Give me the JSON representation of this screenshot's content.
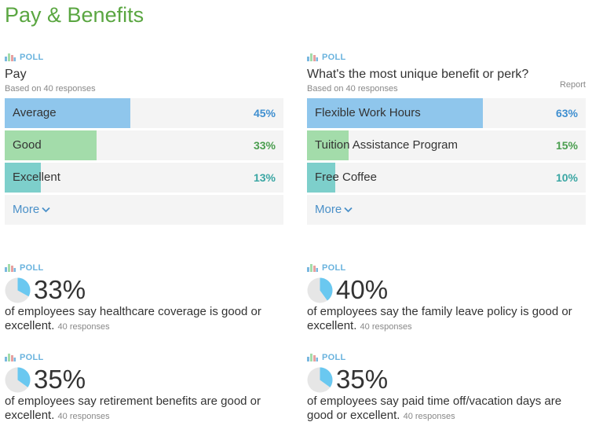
{
  "page": {
    "title": "Pay & Benefits"
  },
  "colors": {
    "blue_fill": "#8fc6ec",
    "green_fill": "#a3dcaa",
    "teal_fill": "#7dcfcb",
    "blue_text": "#3f8fd0",
    "green_text": "#4a9e4f",
    "teal_text": "#3aa6a3",
    "pie_fill": "#6ac8f0",
    "pie_bg": "#e6e6e6"
  },
  "polls": [
    {
      "tag": "POLL",
      "question": "Pay",
      "responses": "Based on 40 responses",
      "report": "",
      "more": "More",
      "options": [
        {
          "label": "Average",
          "pct_label": "45%",
          "value": 45,
          "color": "blue"
        },
        {
          "label": "Good",
          "pct_label": "33%",
          "value": 33,
          "color": "green"
        },
        {
          "label": "Excellent",
          "pct_label": "13%",
          "value": 13,
          "color": "teal"
        }
      ]
    },
    {
      "tag": "POLL",
      "question": "What's the most unique benefit or perk?",
      "responses": "Based on 40 responses",
      "report": "Report",
      "more": "More",
      "options": [
        {
          "label": "Flexible Work Hours",
          "pct_label": "63%",
          "value": 63,
          "color": "blue"
        },
        {
          "label": "Tuition Assistance Program",
          "pct_label": "15%",
          "value": 15,
          "color": "green"
        },
        {
          "label": "Free Coffee",
          "pct_label": "10%",
          "value": 10,
          "color": "teal"
        }
      ]
    }
  ],
  "stats": [
    {
      "tag": "POLL",
      "value": 33,
      "pct_label": "33%",
      "text": "of employees say healthcare coverage is good or excellent.",
      "responses": "40 responses"
    },
    {
      "tag": "POLL",
      "value": 40,
      "pct_label": "40%",
      "text": "of employees say the family leave policy is good or excellent.",
      "responses": "40 responses"
    },
    {
      "tag": "POLL",
      "value": 35,
      "pct_label": "35%",
      "text": "of employees say retirement benefits are good or excellent.",
      "responses": "40 responses"
    },
    {
      "tag": "POLL",
      "value": 35,
      "pct_label": "35%",
      "text": "of employees say paid time off/vacation days are good or excellent.",
      "responses": "40 responses"
    }
  ]
}
